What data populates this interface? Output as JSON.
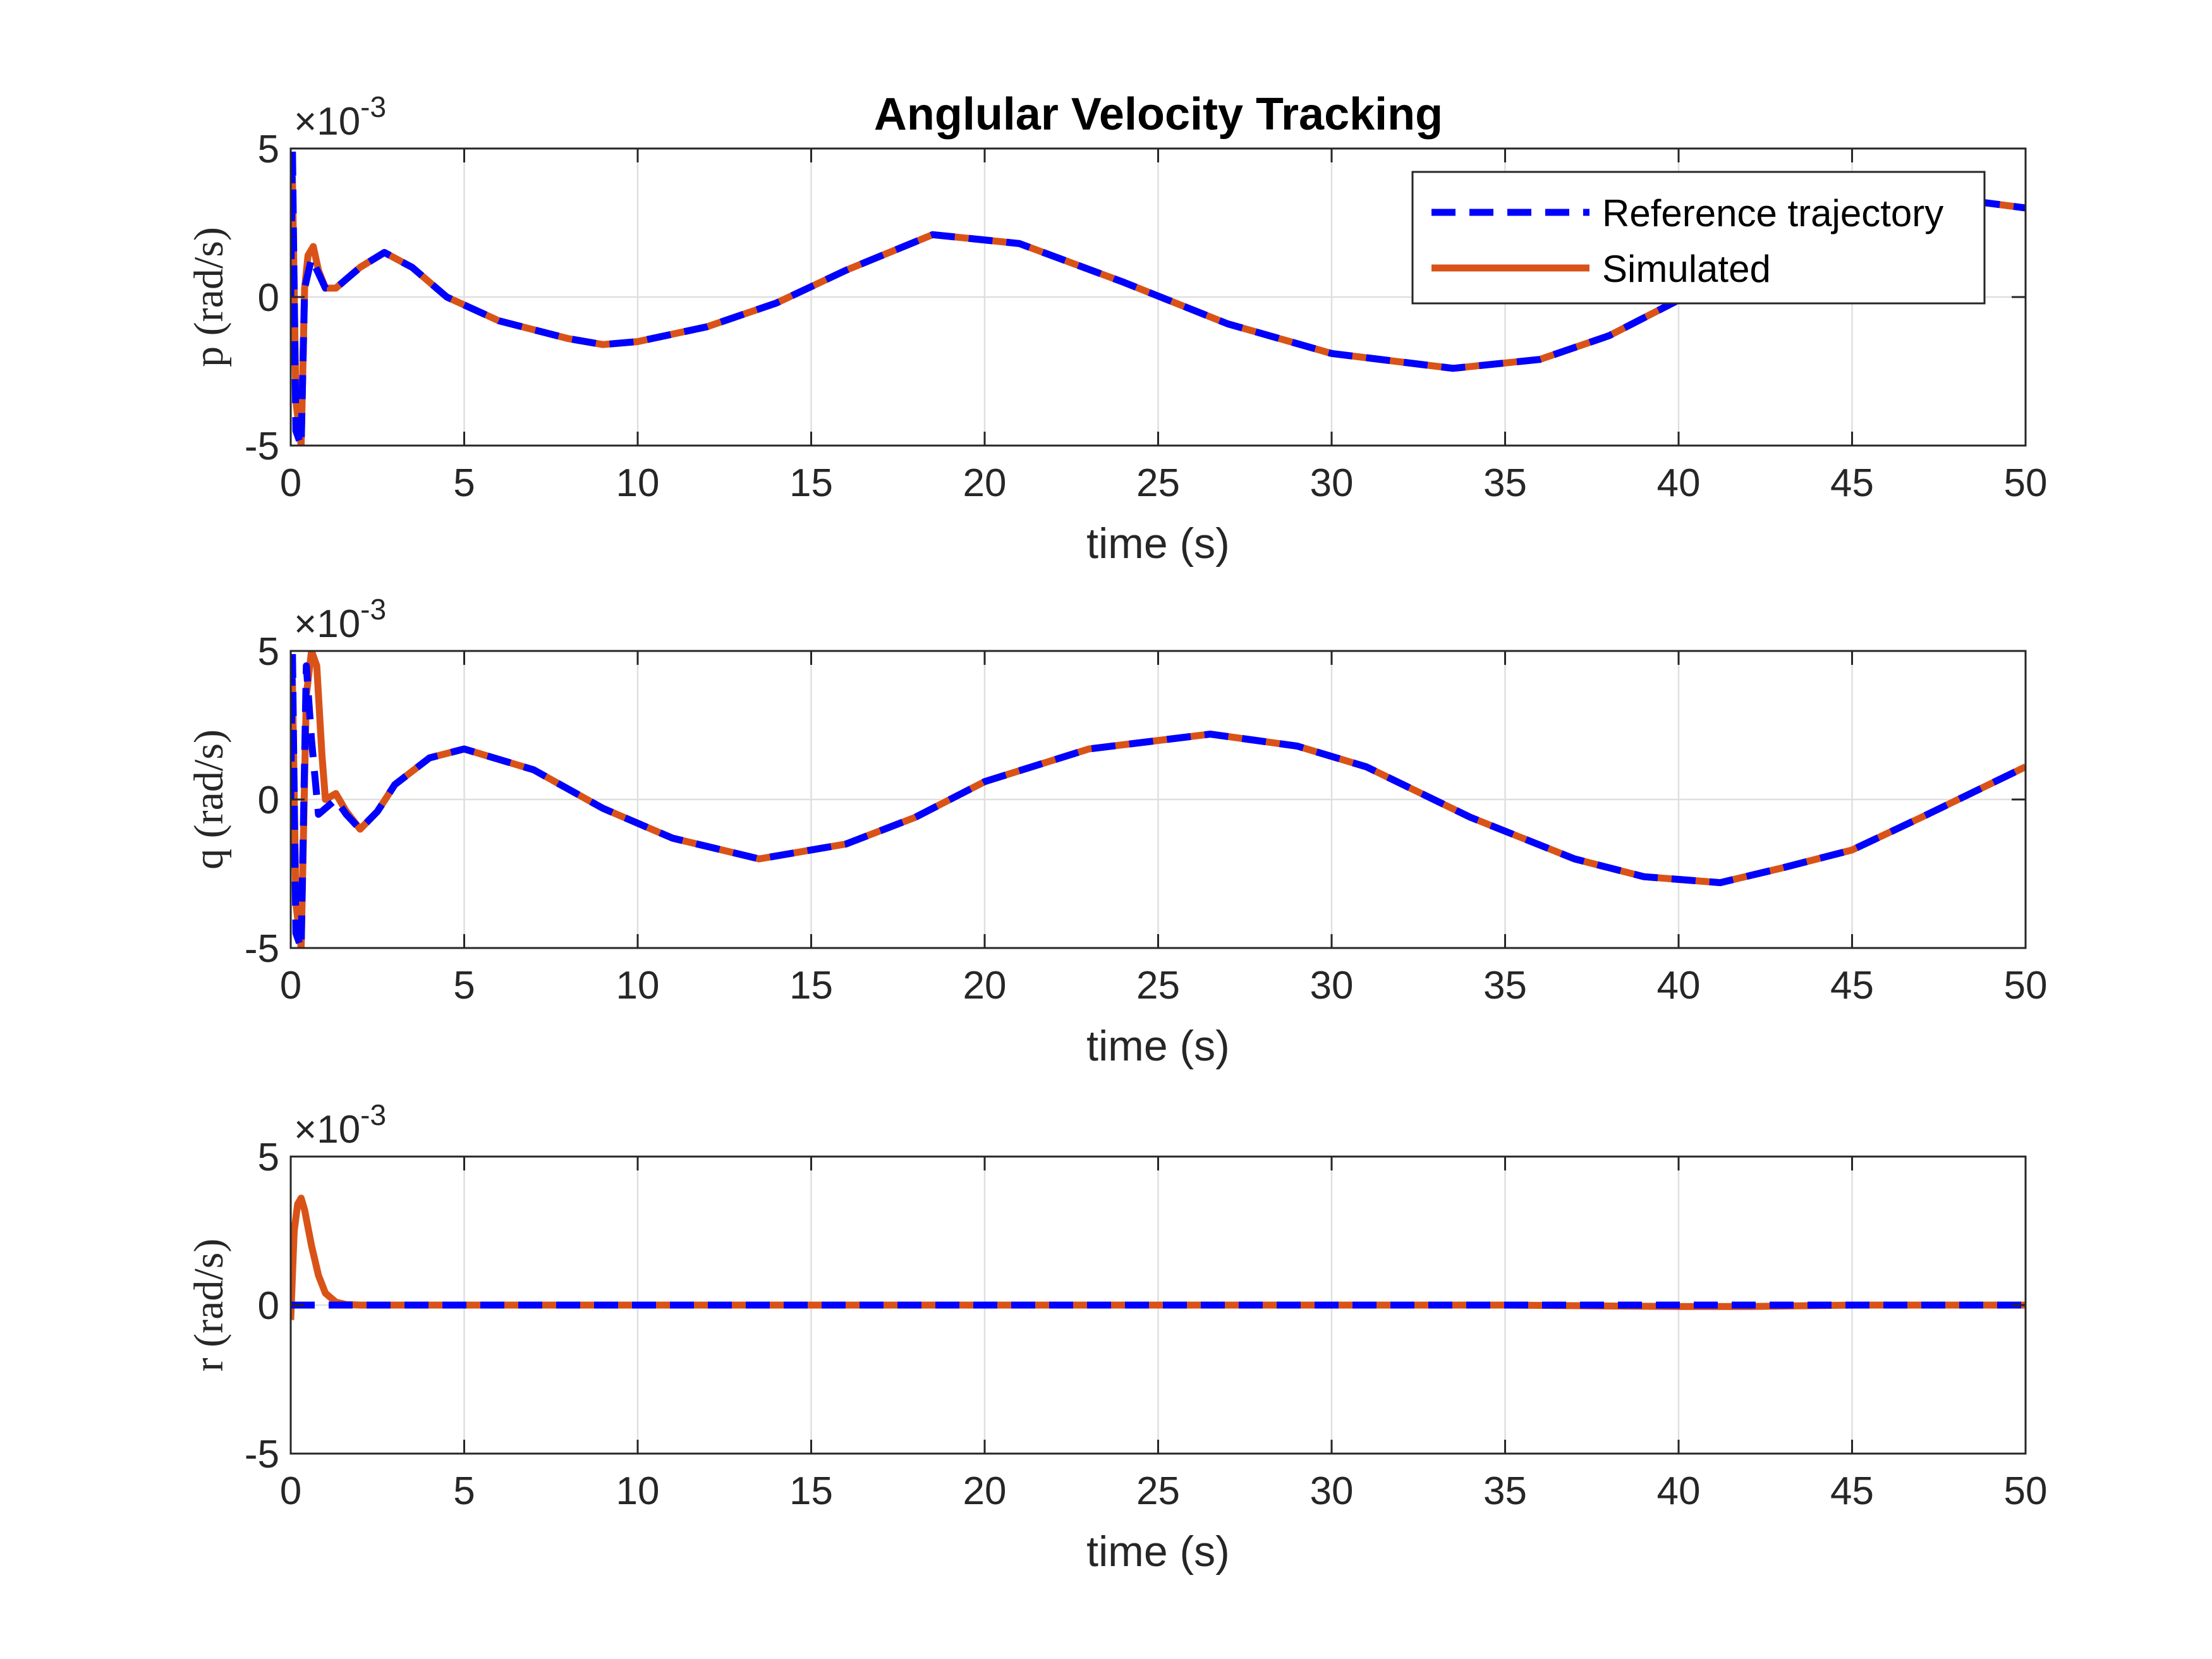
{
  "figure": {
    "title": "Anglular Velocity Tracking",
    "legend": {
      "placement": "top-right",
      "entries": [
        "Reference trajectory",
        "Simulated"
      ]
    }
  },
  "colors": {
    "reference": "#0000ff",
    "simulated": "#d95319",
    "grid": "#dfdfdf",
    "axis": "#262626"
  },
  "chart_data": [
    {
      "type": "line",
      "title": "Anglular Velocity Tracking",
      "xlabel": "time (s)",
      "ylabel": "p (rad/s)",
      "exponent_label": "×10",
      "exponent_power": "-3",
      "xlim": [
        0,
        50
      ],
      "ylim": [
        -5,
        5
      ],
      "xticks": [
        "0",
        "5",
        "10",
        "15",
        "20",
        "25",
        "30",
        "35",
        "40",
        "45",
        "50"
      ],
      "yticks": [
        "-5",
        "0",
        "5"
      ],
      "grid": true,
      "legend": "top-right",
      "series": [
        {
          "name": "Reference trajectory",
          "style": "dashed",
          "x": [
            0,
            0.05,
            0.15,
            0.3,
            0.4,
            0.6,
            0.8,
            1.0,
            1.3,
            1.6,
            2.0,
            2.7,
            3.5,
            4.5,
            6,
            8,
            9,
            10,
            12,
            14,
            16,
            18.5,
            21,
            24,
            27,
            30,
            33.5,
            36,
            38,
            40,
            42,
            44,
            46,
            48,
            50
          ],
          "y": [
            0,
            5,
            -4.5,
            -5,
            0.3,
            1.3,
            0.8,
            0.3,
            0.3,
            0.6,
            1.0,
            1.5,
            1.0,
            0.0,
            -0.8,
            -1.4,
            -1.6,
            -1.5,
            -1.0,
            -0.2,
            0.9,
            2.1,
            1.8,
            0.5,
            -0.9,
            -1.9,
            -2.4,
            -2.1,
            -1.3,
            -0.1,
            1.2,
            2.3,
            3.0,
            3.3,
            3.0
          ]
        },
        {
          "name": "Simulated",
          "style": "solid",
          "x": [
            0,
            0.05,
            0.15,
            0.3,
            0.4,
            0.5,
            0.65,
            0.8,
            1.0,
            1.3,
            1.6,
            2.0,
            2.7,
            3.5,
            4.5,
            6,
            8,
            9,
            10,
            12,
            14,
            16,
            18.5,
            21,
            24,
            27,
            30,
            33.5,
            36,
            38,
            40,
            42,
            44,
            46,
            48,
            50
          ],
          "y": [
            0,
            4.0,
            -3.5,
            -5,
            0.3,
            1.4,
            1.7,
            0.9,
            0.3,
            0.3,
            0.6,
            1.0,
            1.5,
            1.0,
            0.0,
            -0.8,
            -1.4,
            -1.6,
            -1.5,
            -1.0,
            -0.2,
            0.9,
            2.1,
            1.8,
            0.5,
            -0.9,
            -1.9,
            -2.4,
            -2.1,
            -1.3,
            -0.1,
            1.2,
            2.3,
            3.0,
            3.3,
            3.0
          ]
        }
      ]
    },
    {
      "type": "line",
      "xlabel": "time (s)",
      "ylabel": "q (rad/s)",
      "exponent_label": "×10",
      "exponent_power": "-3",
      "xlim": [
        0,
        50
      ],
      "ylim": [
        -5,
        5
      ],
      "xticks": [
        "0",
        "5",
        "10",
        "15",
        "20",
        "25",
        "30",
        "35",
        "40",
        "45",
        "50"
      ],
      "yticks": [
        "-5",
        "0",
        "5"
      ],
      "grid": true,
      "series": [
        {
          "name": "Reference trajectory",
          "style": "dashed",
          "x": [
            0,
            0.05,
            0.15,
            0.3,
            0.45,
            0.6,
            0.8,
            1.0,
            1.3,
            1.6,
            2.0,
            2.5,
            3.0,
            4.0,
            5.0,
            7,
            9,
            11,
            13.5,
            16,
            18,
            20,
            23,
            26.5,
            29,
            31,
            34,
            37,
            39,
            41.2,
            43,
            45,
            47,
            50
          ],
          "y": [
            0,
            5,
            -4.5,
            -5,
            4.5,
            2.0,
            -0.5,
            -0.3,
            0.0,
            -0.5,
            -1.0,
            -0.4,
            0.5,
            1.4,
            1.7,
            1.0,
            -0.3,
            -1.3,
            -2.0,
            -1.5,
            -0.6,
            0.6,
            1.7,
            2.2,
            1.8,
            1.1,
            -0.6,
            -2.0,
            -2.6,
            -2.8,
            -2.3,
            -1.7,
            -0.6,
            1.1
          ]
        },
        {
          "name": "Simulated",
          "style": "solid",
          "x": [
            0,
            0.05,
            0.15,
            0.3,
            0.45,
            0.6,
            0.75,
            0.9,
            1.0,
            1.3,
            1.6,
            2.0,
            2.5,
            3.0,
            4.0,
            5.0,
            7,
            9,
            11,
            13.5,
            16,
            18,
            20,
            23,
            26.5,
            29,
            31,
            34,
            37,
            39,
            41.2,
            43,
            45,
            47,
            50
          ],
          "y": [
            0,
            4.0,
            -3.5,
            -5,
            3.5,
            5.0,
            4.5,
            1.5,
            0.0,
            0.2,
            -0.4,
            -1.0,
            -0.4,
            0.5,
            1.4,
            1.7,
            1.0,
            -0.3,
            -1.3,
            -2.0,
            -1.5,
            -0.6,
            0.6,
            1.7,
            2.2,
            1.8,
            1.1,
            -0.6,
            -2.0,
            -2.6,
            -2.8,
            -2.3,
            -1.7,
            -0.6,
            1.1
          ]
        }
      ]
    },
    {
      "type": "line",
      "xlabel": "time (s)",
      "ylabel": "r (rad/s)",
      "exponent_label": "×10",
      "exponent_power": "-3",
      "xlim": [
        0,
        50
      ],
      "ylim": [
        -5,
        5
      ],
      "xticks": [
        "0",
        "5",
        "10",
        "15",
        "20",
        "25",
        "30",
        "35",
        "40",
        "45",
        "50"
      ],
      "yticks": [
        "-5",
        "0",
        "5"
      ],
      "grid": true,
      "series": [
        {
          "name": "Reference trajectory",
          "style": "dashed",
          "x": [
            0,
            50
          ],
          "y": [
            0,
            0
          ]
        },
        {
          "name": "Simulated",
          "style": "solid",
          "x": [
            0,
            0.05,
            0.1,
            0.2,
            0.3,
            0.4,
            0.6,
            0.8,
            1.0,
            1.3,
            1.6,
            2.0,
            10,
            20,
            30,
            35,
            40,
            42,
            45,
            50
          ],
          "y": [
            -0.5,
            1.0,
            2.5,
            3.4,
            3.6,
            3.2,
            2.0,
            1.0,
            0.4,
            0.1,
            0.02,
            0.0,
            0.0,
            0.0,
            0.0,
            0.0,
            -0.05,
            -0.05,
            0.0,
            0.0
          ]
        }
      ]
    }
  ]
}
